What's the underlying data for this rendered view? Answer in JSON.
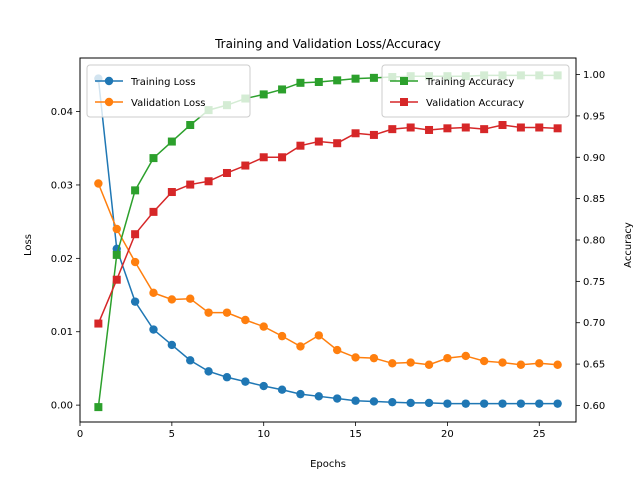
{
  "chart_data": {
    "type": "line",
    "title": "Training and Validation Loss/Accuracy",
    "xlabel": "Epochs",
    "ylabel_left": "Loss",
    "ylabel_right": "Accuracy",
    "xlim": [
      0,
      27
    ],
    "ylim_left": [
      -0.0023,
      0.0473
    ],
    "ylim_right": [
      0.58,
      1.02
    ],
    "x_ticks": [
      0,
      5,
      10,
      15,
      20,
      25
    ],
    "y_ticks_left": [
      0.0,
      0.01,
      0.02,
      0.03,
      0.04
    ],
    "y_ticks_left_labels": [
      "0.00",
      "0.01",
      "0.02",
      "0.03",
      "0.04"
    ],
    "y_ticks_right": [
      0.6,
      0.65,
      0.7,
      0.75,
      0.8,
      0.85,
      0.9,
      0.95,
      1.0
    ],
    "y_ticks_right_labels": [
      "0.60",
      "0.65",
      "0.70",
      "0.75",
      "0.80",
      "0.85",
      "0.90",
      "0.95",
      "1.00"
    ],
    "grid": false,
    "legend_left_placement": "top-left",
    "legend_right_placement": "top-right",
    "x": [
      1,
      2,
      3,
      4,
      5,
      6,
      7,
      8,
      9,
      10,
      11,
      12,
      13,
      14,
      15,
      16,
      17,
      18,
      19,
      20,
      21,
      22,
      23,
      24,
      25,
      26
    ],
    "series": [
      {
        "name": "Training Loss",
        "axis": "left",
        "color": "#1f77b4",
        "marker": "circle",
        "values": [
          0.0445,
          0.0213,
          0.0141,
          0.0103,
          0.0082,
          0.0061,
          0.0046,
          0.0038,
          0.0032,
          0.0026,
          0.0021,
          0.0015,
          0.0012,
          0.0009,
          0.0006,
          0.0005,
          0.0004,
          0.0003,
          0.0003,
          0.0002,
          0.0002,
          0.0002,
          0.0002,
          0.0002,
          0.0002,
          0.0002
        ]
      },
      {
        "name": "Validation Loss",
        "axis": "left",
        "color": "#ff7f0e",
        "marker": "circle",
        "values": [
          0.0302,
          0.024,
          0.0195,
          0.0153,
          0.0144,
          0.0145,
          0.0126,
          0.0126,
          0.0116,
          0.0107,
          0.0094,
          0.008,
          0.0095,
          0.0075,
          0.0065,
          0.0064,
          0.0057,
          0.0058,
          0.0055,
          0.0064,
          0.0067,
          0.006,
          0.0058,
          0.0055,
          0.0057,
          0.0055
        ]
      },
      {
        "name": "Training Accuracy",
        "axis": "right",
        "color": "#2ca02c",
        "marker": "square",
        "values": [
          0.598,
          0.782,
          0.86,
          0.899,
          0.919,
          0.939,
          0.957,
          0.963,
          0.971,
          0.976,
          0.982,
          0.99,
          0.991,
          0.993,
          0.995,
          0.996,
          0.997,
          0.998,
          0.998,
          0.998,
          0.998,
          0.999,
          0.999,
          0.999,
          0.999,
          0.999
        ]
      },
      {
        "name": "Validation Accuracy",
        "axis": "right",
        "color": "#d62728",
        "marker": "square",
        "values": [
          0.699,
          0.752,
          0.807,
          0.834,
          0.858,
          0.867,
          0.871,
          0.881,
          0.89,
          0.9,
          0.9,
          0.914,
          0.919,
          0.917,
          0.929,
          0.927,
          0.934,
          0.936,
          0.933,
          0.935,
          0.936,
          0.934,
          0.939,
          0.936,
          0.936,
          0.935
        ]
      }
    ]
  }
}
